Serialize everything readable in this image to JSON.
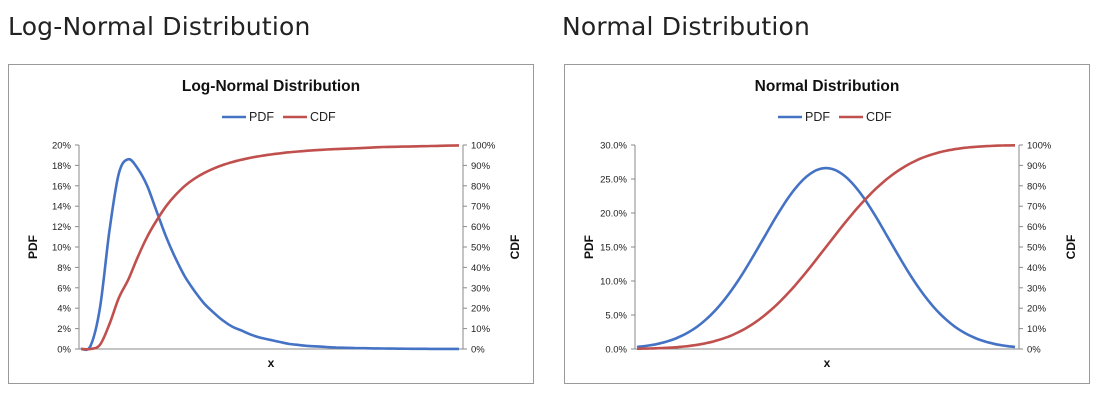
{
  "headings": {
    "left": "Log-Normal Distribution",
    "right": "Normal Distribution"
  },
  "colors": {
    "pdf": "#4472C4",
    "cdf": "#C0504D"
  },
  "chart_data": [
    {
      "type": "line",
      "title": "Log-Normal Distribution",
      "xlabel": "x",
      "ylabel": "PDF",
      "y2label": "CDF",
      "legend_position": "top",
      "grid": false,
      "ylim": [
        0,
        0.2
      ],
      "y2lim": [
        0,
        1.0
      ],
      "yticks": [
        "0%",
        "2%",
        "4%",
        "6%",
        "8%",
        "10%",
        "12%",
        "14%",
        "16%",
        "18%",
        "20%"
      ],
      "y2ticks": [
        "0%",
        "10%",
        "20%",
        "30%",
        "40%",
        "50%",
        "60%",
        "70%",
        "80%",
        "90%",
        "100%"
      ],
      "series": [
        {
          "name": "PDF",
          "axis": "left",
          "values": [
            0,
            0.003,
            0.04,
            0.115,
            0.172,
            0.186,
            0.177,
            0.16,
            0.135,
            0.11,
            0.089,
            0.071,
            0.057,
            0.045,
            0.036,
            0.028,
            0.022,
            0.018,
            0.014,
            0.011,
            0.009,
            0.007,
            0.005,
            0.004,
            0.003,
            0.0025,
            0.002,
            0.0015,
            0.0012,
            0.001,
            0.0008,
            0.0006,
            0.0005,
            0.0004,
            0.0003,
            0.0002,
            0.0002,
            0.0001,
            0.0001,
            0.0001,
            0.0001
          ]
        },
        {
          "name": "CDF",
          "axis": "right",
          "values": [
            0,
            0.0,
            0.02,
            0.12,
            0.25,
            0.34,
            0.45,
            0.55,
            0.63,
            0.7,
            0.755,
            0.8,
            0.835,
            0.862,
            0.884,
            0.902,
            0.916,
            0.928,
            0.938,
            0.946,
            0.953,
            0.959,
            0.964,
            0.968,
            0.972,
            0.975,
            0.978,
            0.98,
            0.982,
            0.984,
            0.986,
            0.988,
            0.99,
            0.991,
            0.992,
            0.993,
            0.994,
            0.995,
            0.996,
            0.997,
            0.998
          ]
        }
      ]
    },
    {
      "type": "line",
      "title": "Normal Distribution",
      "xlabel": "x",
      "ylabel": "PDF",
      "y2label": "CDF",
      "legend_position": "top",
      "grid": false,
      "ylim": [
        0,
        0.3
      ],
      "y2lim": [
        0,
        1.0
      ],
      "yticks": [
        "0.0%",
        "5.0%",
        "10.0%",
        "15.0%",
        "20.0%",
        "25.0%",
        "30.0%"
      ],
      "y2ticks": [
        "0%",
        "10%",
        "20%",
        "30%",
        "40%",
        "50%",
        "60%",
        "70%",
        "80%",
        "90%",
        "100%"
      ],
      "series": [
        {
          "name": "PDF",
          "axis": "left",
          "values": []
        },
        {
          "name": "CDF",
          "axis": "right",
          "values": []
        }
      ],
      "pdf_peak": 0.266,
      "x_range_sd": 3
    }
  ]
}
